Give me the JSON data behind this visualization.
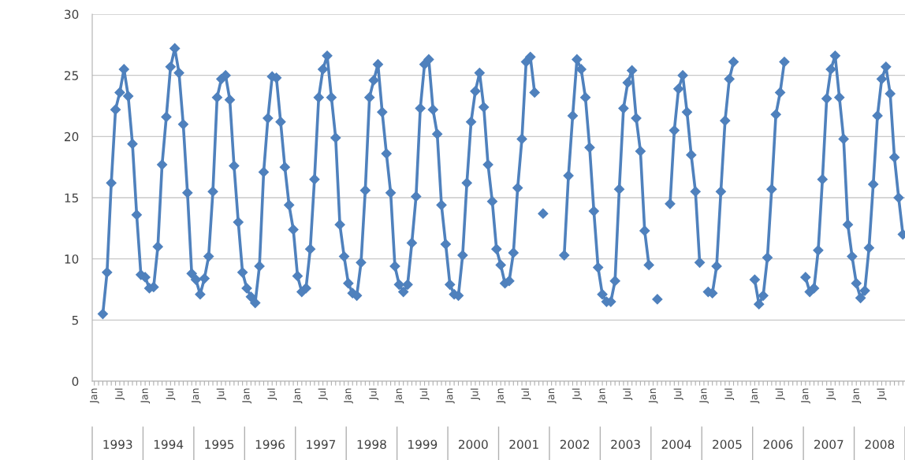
{
  "chart_data": {
    "type": "line",
    "categories": [
      "Jan",
      null,
      null,
      null,
      null,
      null,
      "Jul",
      null,
      null,
      null,
      null,
      null,
      "Jan",
      null,
      null,
      null,
      null,
      null,
      "Jul",
      null,
      null,
      null,
      null,
      null,
      "Jan",
      null,
      null,
      null,
      null,
      null,
      "Jul",
      null,
      null,
      null,
      null,
      null,
      "Jan",
      null,
      null,
      null,
      null,
      null,
      "Jul",
      null,
      null,
      null,
      null,
      null,
      "Jan",
      null,
      null,
      null,
      null,
      null,
      "Jul",
      null,
      null,
      null,
      null,
      null,
      "Jan",
      null,
      null,
      null,
      null,
      null,
      "Jul",
      null,
      null,
      null,
      null,
      null,
      "Jan",
      null,
      null,
      null,
      null,
      null,
      "Jul",
      null,
      null,
      null,
      null,
      null,
      "Jan",
      null,
      null,
      null,
      null,
      null,
      "Jul",
      null,
      null,
      null,
      null,
      null,
      "Jan",
      null,
      null,
      null,
      null,
      null,
      "Jul",
      null,
      null,
      null,
      null,
      null,
      "Jan",
      null,
      null,
      null,
      null,
      null,
      "Jul",
      null,
      null,
      null,
      null,
      null,
      "Jan",
      null,
      null,
      null,
      null,
      null,
      "Jul",
      null,
      null,
      null,
      null,
      null,
      "Jan",
      null,
      null,
      null,
      null,
      null,
      "Jul",
      null,
      null,
      null,
      null,
      null,
      "Jan",
      null,
      null,
      null,
      null,
      null,
      "Jul",
      null,
      null,
      null,
      null,
      null,
      "Jan",
      null,
      null,
      null,
      null,
      null,
      "Jul",
      null,
      null,
      null,
      null,
      null,
      "Jan",
      null,
      null,
      null,
      null,
      null,
      "Jul",
      null,
      null,
      null,
      null,
      null,
      "Jan",
      null,
      null,
      null,
      null,
      null,
      "Jul",
      null,
      null,
      null,
      null,
      null
    ],
    "series": [
      {
        "color": "#4f81bd",
        "values": [
          null,
          null,
          5.5,
          8.9,
          16.2,
          22.2,
          23.6,
          25.5,
          23.3,
          19.4,
          13.6,
          8.7,
          8.5,
          7.6,
          7.7,
          11.0,
          17.7,
          21.6,
          25.7,
          27.2,
          25.2,
          21.0,
          15.4,
          8.8,
          8.3,
          7.1,
          8.4,
          10.2,
          15.5,
          23.2,
          24.7,
          25.0,
          23.0,
          17.6,
          13.0,
          8.9,
          7.6,
          6.9,
          6.4,
          9.4,
          17.1,
          21.5,
          24.9,
          24.8,
          21.2,
          17.5,
          14.4,
          12.4,
          8.6,
          7.3,
          7.6,
          10.8,
          16.5,
          23.2,
          25.5,
          26.6,
          23.2,
          19.9,
          12.8,
          10.2,
          8.0,
          7.2,
          7.0,
          9.7,
          15.6,
          23.2,
          24.6,
          25.9,
          22.0,
          18.6,
          15.4,
          9.4,
          7.9,
          7.3,
          7.9,
          11.3,
          15.1,
          22.3,
          25.9,
          26.3,
          22.2,
          20.2,
          14.4,
          11.2,
          7.9,
          7.1,
          7.0,
          10.3,
          16.2,
          21.2,
          23.7,
          25.2,
          22.4,
          17.7,
          14.7,
          10.8,
          9.5,
          8.0,
          8.2,
          10.5,
          15.8,
          19.8,
          26.1,
          26.5,
          23.6,
          null,
          13.7,
          null,
          null,
          null,
          null,
          10.3,
          16.8,
          21.7,
          26.3,
          25.5,
          23.2,
          19.1,
          13.9,
          9.3,
          7.1,
          6.5,
          6.5,
          8.2,
          15.7,
          22.3,
          24.4,
          25.4,
          21.5,
          18.8,
          12.3,
          9.5,
          null,
          6.7,
          null,
          null,
          14.5,
          20.5,
          23.9,
          25.0,
          22.0,
          18.5,
          15.5,
          9.7,
          null,
          7.3,
          7.2,
          9.4,
          15.5,
          21.3,
          24.7,
          26.1,
          null,
          null,
          null,
          null,
          8.3,
          6.3,
          7.0,
          10.1,
          15.7,
          21.8,
          23.6,
          26.1,
          null,
          null,
          null,
          null,
          8.5,
          7.3,
          7.6,
          10.7,
          16.5,
          23.1,
          25.5,
          26.6,
          23.2,
          19.8,
          12.8,
          10.2,
          8.0,
          6.8,
          7.4,
          10.9,
          16.1,
          21.7,
          24.7,
          25.7,
          23.5,
          18.3,
          15.0,
          12.0
        ]
      }
    ],
    "ylim": [
      0,
      30
    ],
    "yticks": [
      0,
      5,
      10,
      15,
      20,
      25,
      30
    ],
    "grid": "y",
    "marker": "diamond",
    "line_style": "solid",
    "annotations": [
      "1993",
      "1994",
      "1995",
      "1996",
      "1997",
      "1998",
      "1999",
      "2000",
      "2001",
      "2002",
      "2003",
      "2004",
      "2005",
      "2006",
      "2007",
      "2008"
    ]
  }
}
